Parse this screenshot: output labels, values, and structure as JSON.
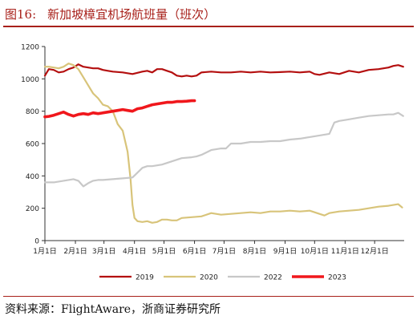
{
  "header": {
    "figure_num": "图16:",
    "title": "新加坡樟宜机场航班量（班次）"
  },
  "footer": {
    "source": "资料来源：FlightAware，浙商证券研究所"
  },
  "colors": {
    "2019": "#b40f0f",
    "2020": "#d8c47a",
    "2022": "#c8c8c8",
    "2023": "#f0171c",
    "accent": "#a8201a"
  },
  "chart_data": {
    "type": "line",
    "title": "",
    "xlabel": "",
    "ylabel": "",
    "ylim": [
      0,
      1200
    ],
    "yticks": [
      0,
      200,
      400,
      600,
      800,
      1000,
      1200
    ],
    "xlim": [
      1,
      366
    ],
    "xticks": [
      {
        "day": 1,
        "label": "1月1日"
      },
      {
        "day": 32,
        "label": "2月1日"
      },
      {
        "day": 61,
        "label": "3月1日"
      },
      {
        "day": 92,
        "label": "4月1日"
      },
      {
        "day": 122,
        "label": "5月1日"
      },
      {
        "day": 153,
        "label": "6月1日"
      },
      {
        "day": 183,
        "label": "7月1日"
      },
      {
        "day": 214,
        "label": "8月1日"
      },
      {
        "day": 245,
        "label": "9月1日"
      },
      {
        "day": 275,
        "label": "10月1日"
      },
      {
        "day": 306,
        "label": "11月1日"
      },
      {
        "day": 336,
        "label": "12月1日"
      }
    ],
    "x_unit": "day of year",
    "legend_position": "bottom",
    "series": [
      {
        "name": "2019",
        "color": "#b40f0f",
        "width": 2.2,
        "x": [
          1,
          5,
          10,
          15,
          20,
          25,
          30,
          35,
          40,
          45,
          50,
          55,
          60,
          65,
          70,
          80,
          90,
          100,
          105,
          110,
          115,
          120,
          125,
          130,
          135,
          140,
          145,
          150,
          155,
          160,
          170,
          180,
          190,
          200,
          210,
          220,
          230,
          240,
          250,
          260,
          270,
          275,
          280,
          290,
          300,
          310,
          320,
          330,
          340,
          350,
          355,
          360,
          365
        ],
        "y": [
          1020,
          1060,
          1055,
          1040,
          1045,
          1060,
          1070,
          1090,
          1075,
          1070,
          1065,
          1065,
          1055,
          1050,
          1045,
          1040,
          1030,
          1045,
          1050,
          1040,
          1060,
          1060,
          1050,
          1040,
          1020,
          1015,
          1020,
          1015,
          1020,
          1040,
          1045,
          1040,
          1040,
          1045,
          1040,
          1045,
          1040,
          1042,
          1045,
          1040,
          1045,
          1030,
          1025,
          1040,
          1030,
          1050,
          1040,
          1055,
          1060,
          1070,
          1080,
          1085,
          1075
        ]
      },
      {
        "name": "2020",
        "color": "#d8c47a",
        "width": 2.2,
        "x": [
          1,
          5,
          10,
          15,
          20,
          25,
          30,
          35,
          40,
          45,
          50,
          55,
          60,
          65,
          70,
          75,
          80,
          85,
          88,
          90,
          92,
          95,
          100,
          105,
          110,
          115,
          120,
          125,
          130,
          135,
          140,
          150,
          160,
          170,
          180,
          190,
          200,
          210,
          220,
          230,
          240,
          250,
          260,
          270,
          275,
          280,
          285,
          290,
          300,
          310,
          320,
          330,
          340,
          350,
          355,
          360,
          364
        ],
        "y": [
          1075,
          1075,
          1070,
          1065,
          1075,
          1095,
          1085,
          1060,
          1010,
          960,
          910,
          880,
          840,
          830,
          800,
          720,
          680,
          550,
          380,
          220,
          140,
          120,
          115,
          120,
          110,
          115,
          130,
          130,
          125,
          125,
          140,
          145,
          150,
          170,
          160,
          165,
          170,
          175,
          170,
          180,
          180,
          185,
          180,
          185,
          175,
          165,
          155,
          170,
          180,
          185,
          190,
          200,
          210,
          215,
          220,
          225,
          205
        ]
      },
      {
        "name": "2022",
        "color": "#c8c8c8",
        "width": 2.2,
        "x": [
          1,
          10,
          20,
          30,
          35,
          40,
          45,
          50,
          55,
          60,
          70,
          80,
          90,
          95,
          100,
          105,
          110,
          120,
          130,
          140,
          150,
          155,
          160,
          170,
          180,
          185,
          190,
          200,
          210,
          220,
          230,
          240,
          250,
          260,
          270,
          280,
          290,
          295,
          300,
          310,
          320,
          330,
          340,
          350,
          355,
          360,
          365
        ],
        "y": [
          360,
          360,
          370,
          380,
          370,
          335,
          355,
          370,
          375,
          375,
          380,
          385,
          390,
          420,
          450,
          460,
          460,
          470,
          490,
          510,
          515,
          520,
          530,
          560,
          570,
          570,
          600,
          600,
          610,
          610,
          615,
          615,
          625,
          630,
          640,
          650,
          660,
          730,
          740,
          750,
          760,
          770,
          775,
          780,
          780,
          790,
          770
        ]
      },
      {
        "name": "2023",
        "color": "#f0171c",
        "width": 3.6,
        "x": [
          1,
          5,
          10,
          15,
          20,
          25,
          30,
          35,
          40,
          45,
          50,
          55,
          60,
          65,
          70,
          75,
          80,
          85,
          90,
          95,
          100,
          105,
          110,
          115,
          120,
          125,
          130,
          135,
          140,
          145,
          150,
          153
        ],
        "y": [
          765,
          768,
          775,
          785,
          795,
          780,
          770,
          780,
          785,
          780,
          790,
          785,
          790,
          795,
          800,
          805,
          810,
          805,
          800,
          815,
          820,
          830,
          840,
          845,
          850,
          855,
          855,
          860,
          860,
          862,
          865,
          865
        ]
      }
    ]
  }
}
